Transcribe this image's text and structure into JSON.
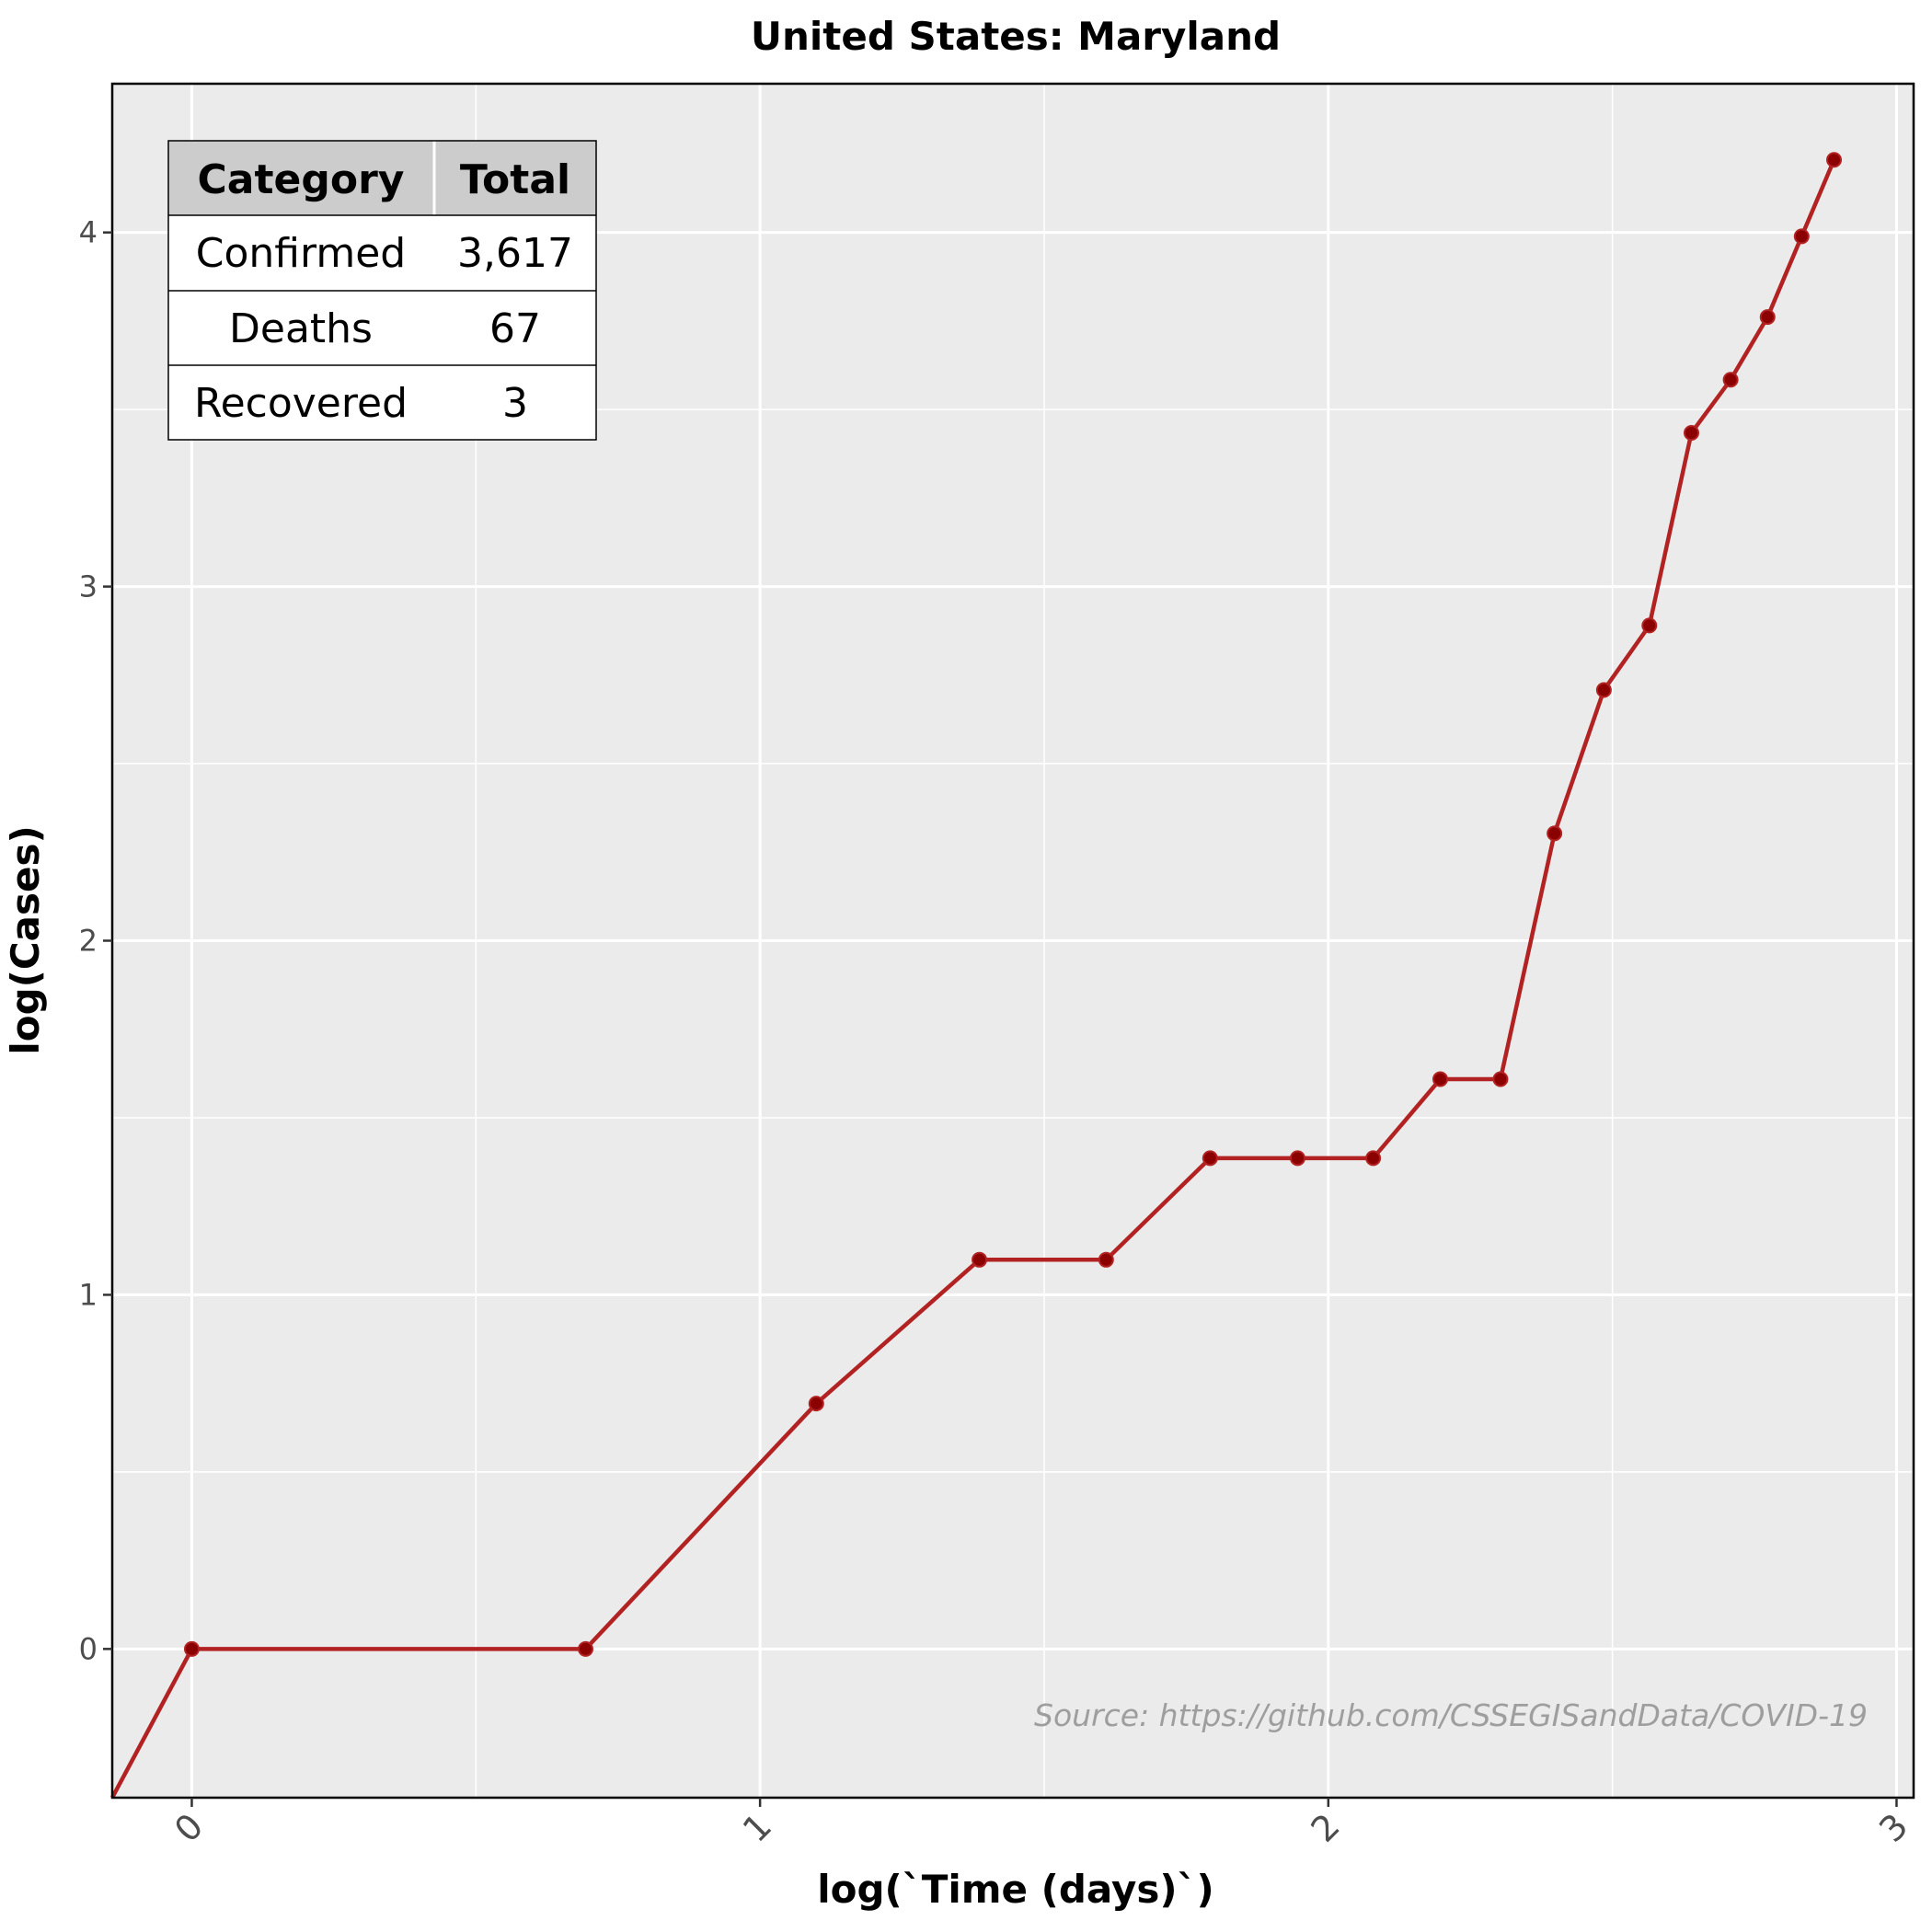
{
  "chart_data": {
    "type": "line",
    "title": "United States: Maryland",
    "xlabel": "log(`Time (days)`)",
    "ylabel": "log(Cases)",
    "xlim": [
      -0.14,
      3.03
    ],
    "ylim": [
      -0.42,
      4.42
    ],
    "xticks": [
      0,
      1,
      2,
      3
    ],
    "yticks": [
      0,
      1,
      2,
      3,
      4
    ],
    "grid": true,
    "line_color": "#b22222",
    "point_color": "#8b0000",
    "panel_color": "#ebebeb",
    "series": [
      {
        "x": [
          0,
          0.693,
          1.099,
          1.386,
          1.609,
          1.792,
          1.946,
          2.079,
          2.197,
          2.303,
          2.398,
          2.485,
          2.565,
          2.639,
          2.708,
          2.773,
          2.833,
          2.89
        ],
        "y": [
          0,
          0,
          0.693,
          1.099,
          1.099,
          1.386,
          1.386,
          1.386,
          1.609,
          1.609,
          2.303,
          2.708,
          2.89,
          3.434,
          3.584,
          3.761,
          3.989,
          4.205
        ]
      }
    ],
    "leading_segment": {
      "x": -0.14,
      "y": -0.42
    },
    "source_note": "Source: https://github.com/CSSEGISandData/COVID-19",
    "summary_table": {
      "headers": [
        "Category",
        "Total"
      ],
      "rows": [
        [
          "Confirmed",
          "3,617"
        ],
        [
          "Deaths",
          "67"
        ],
        [
          "Recovered",
          "3"
        ]
      ]
    }
  }
}
